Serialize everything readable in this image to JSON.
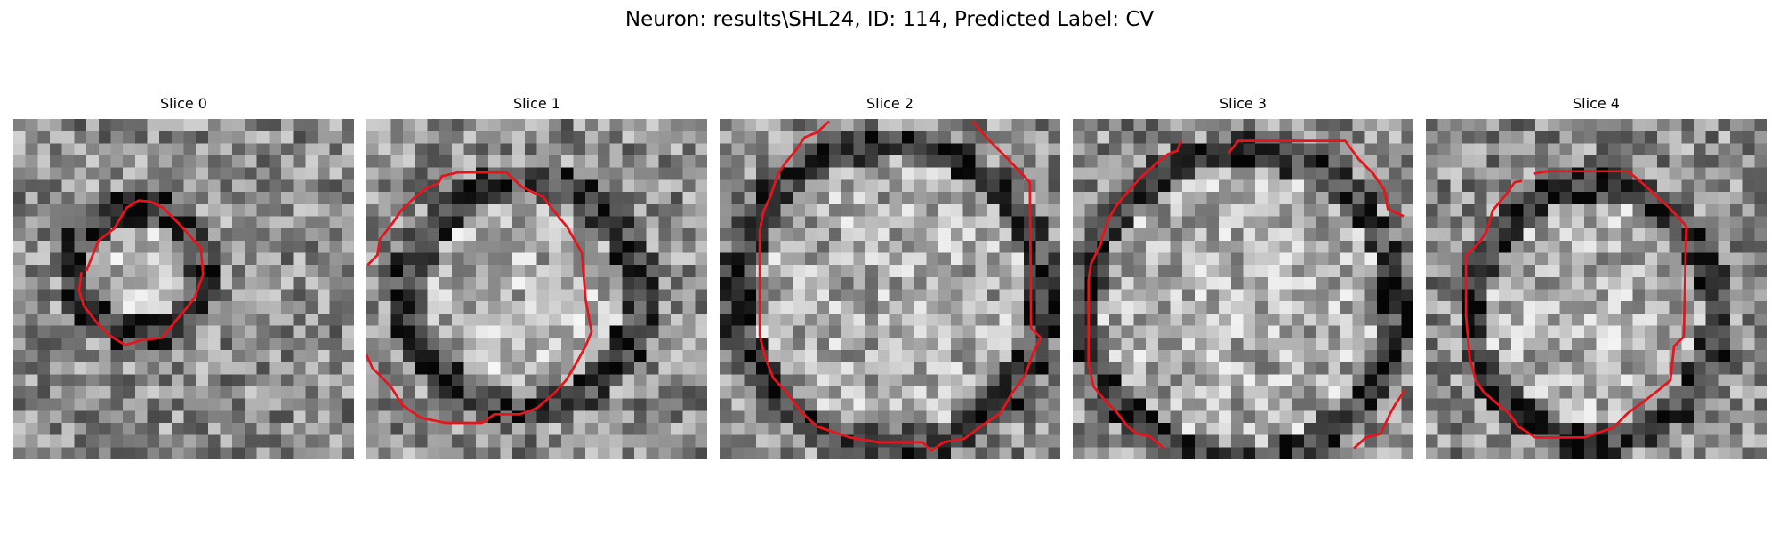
{
  "title": "Neuron: results\\SHL24, ID: 114, Predicted Label: CV",
  "contour_color": "#e8141c",
  "colormap": "gray",
  "grid_size": 28,
  "panels": [
    {
      "label": "Slice 0"
    },
    {
      "label": "Slice 1"
    },
    {
      "label": "Slice 2"
    },
    {
      "label": "Slice 3"
    },
    {
      "label": "Slice 4"
    }
  ]
}
